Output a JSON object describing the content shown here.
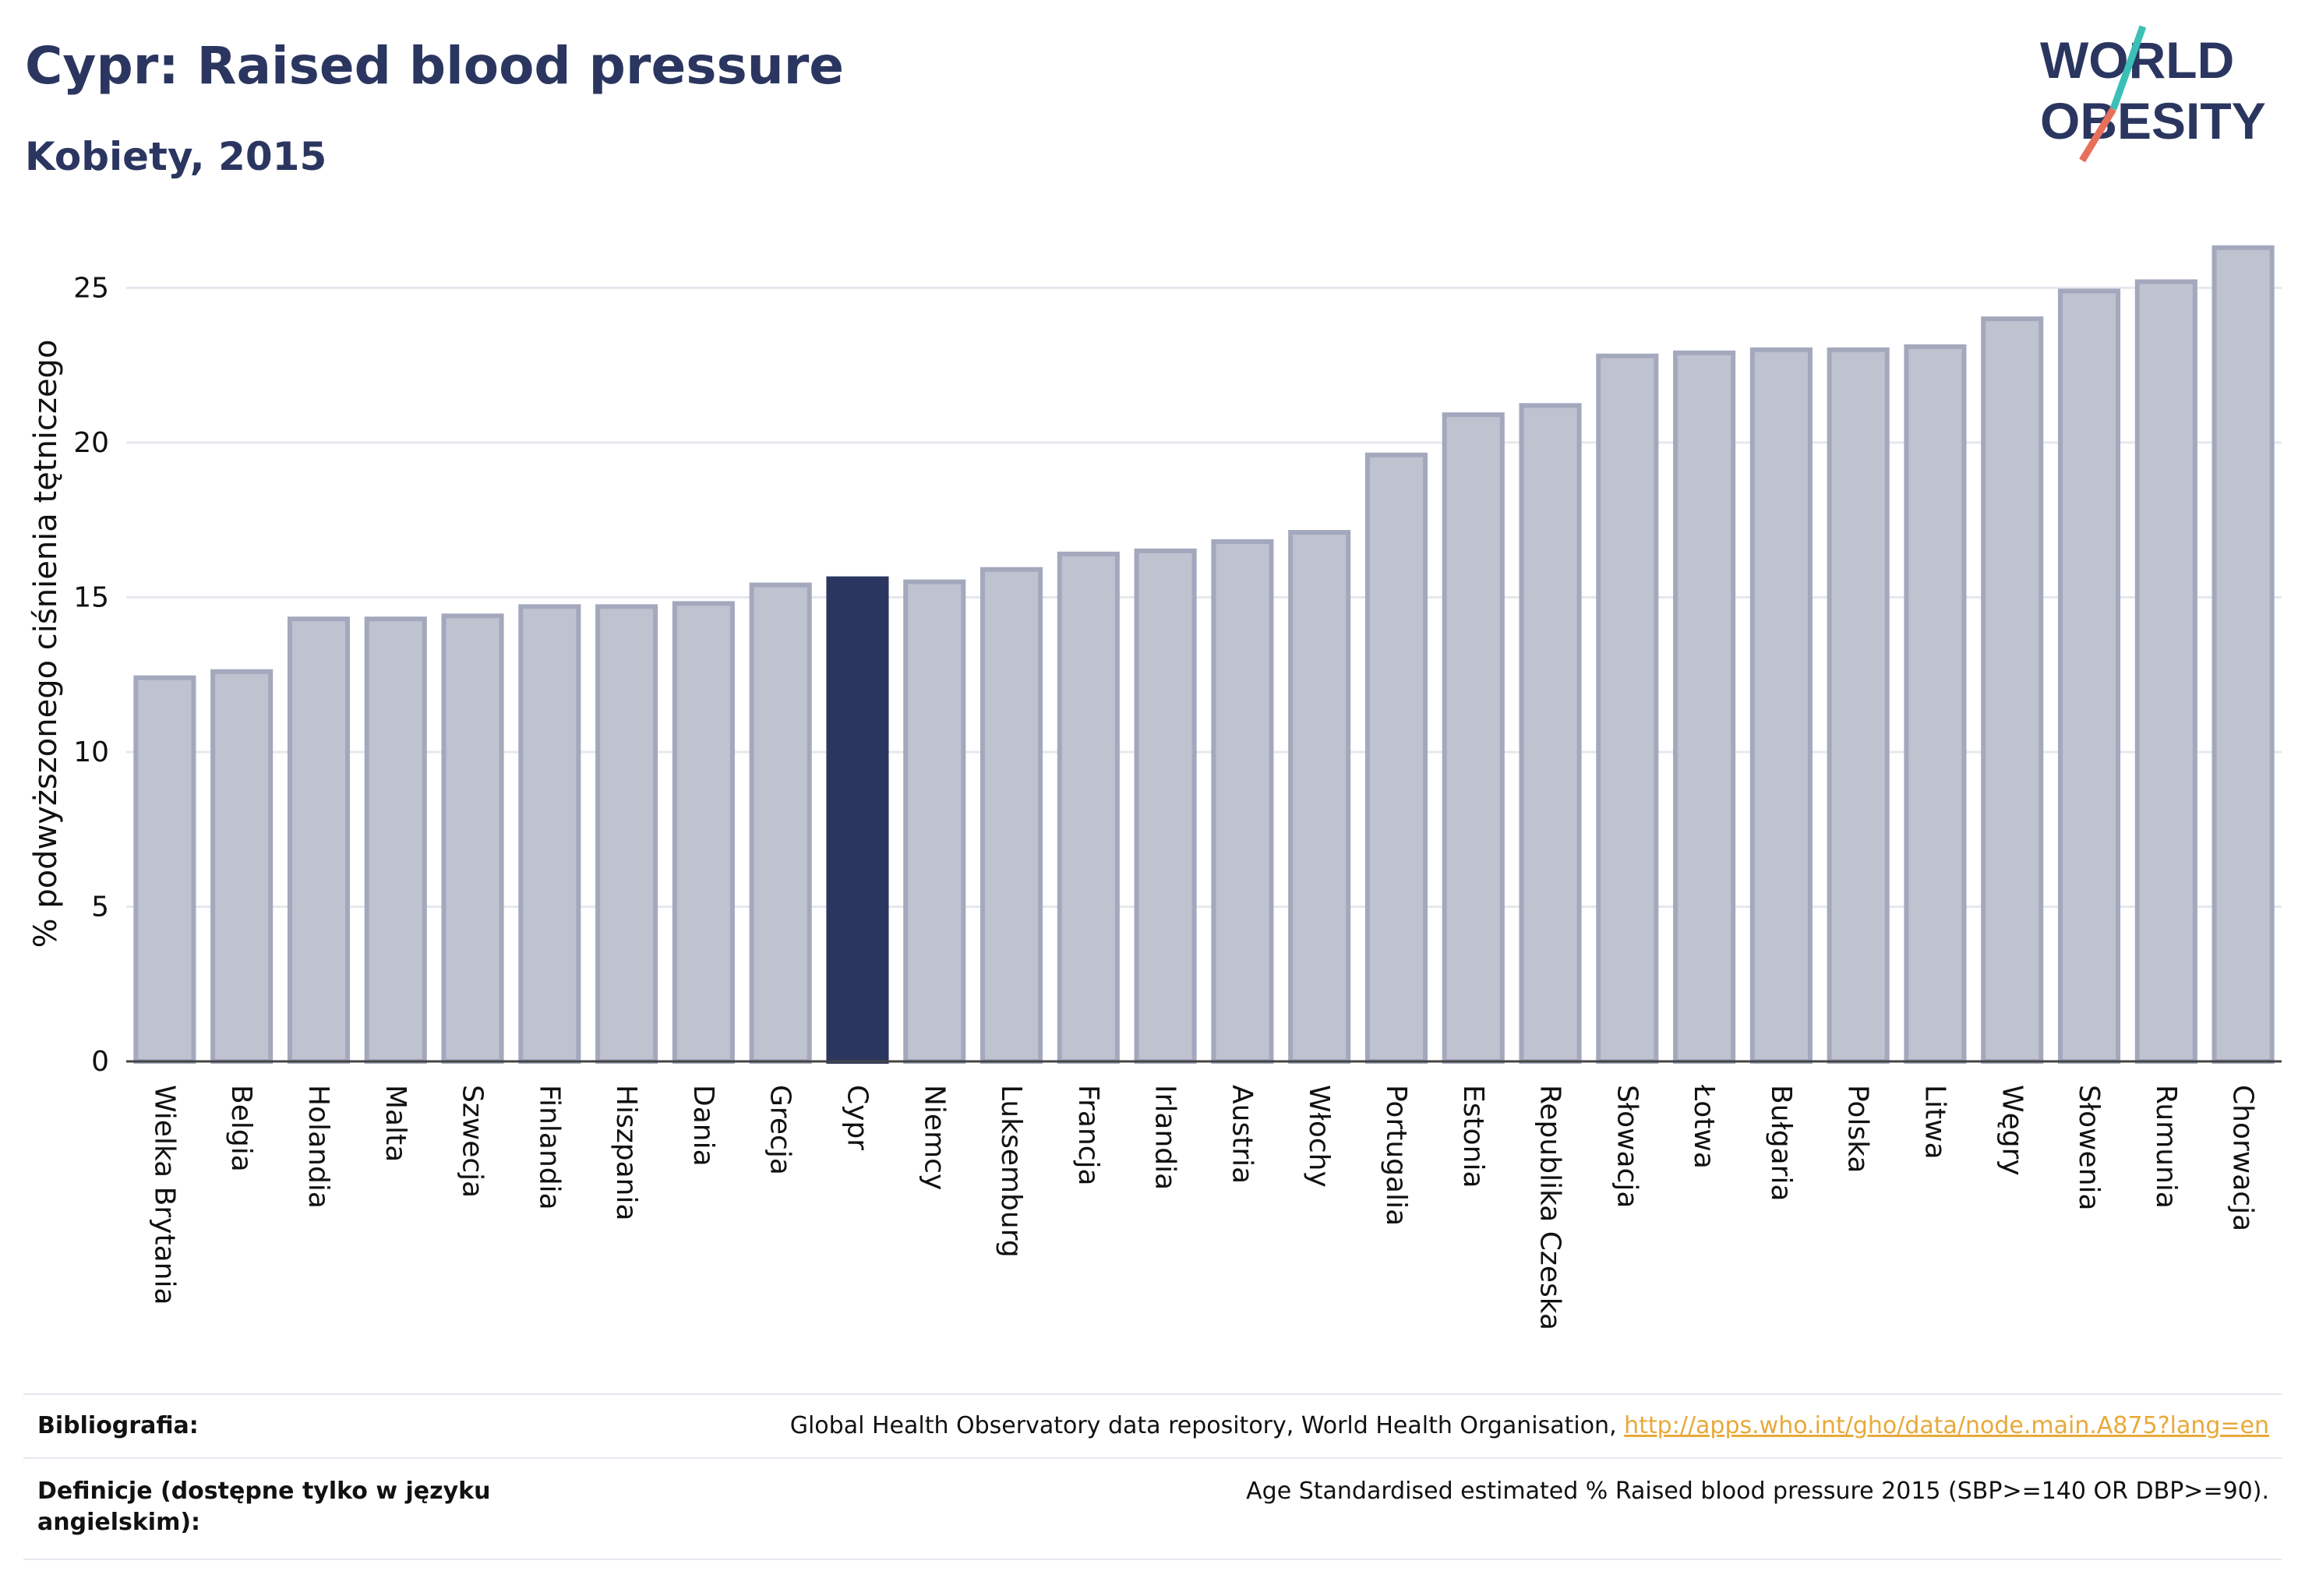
{
  "header": {
    "title": "Cypr: Raised blood pressure",
    "subtitle": "Kobiety, 2015"
  },
  "logo": {
    "line1": "WORLD",
    "line2": "OBESITY"
  },
  "chart_data": {
    "type": "bar",
    "ylabel": "% podwyższonego ciśnienia tętniczego",
    "ylim": [
      0,
      27
    ],
    "yticks": [
      0,
      5,
      10,
      15,
      20,
      25
    ],
    "grid": true,
    "highlight": "Cypr",
    "colors": {
      "bar": "#bfc2cf",
      "bar_edge": "#a3a8bd",
      "highlight": "#2b3660"
    },
    "categories": [
      "Wielka Brytania",
      "Belgia",
      "Holandia",
      "Malta",
      "Szwecja",
      "Finlandia",
      "Hiszpania",
      "Dania",
      "Grecja",
      "Cypr",
      "Niemcy",
      "Luksemburg",
      "Francja",
      "Irlandia",
      "Austria",
      "Włochy",
      "Portugalia",
      "Estonia",
      "Republika Czeska",
      "Słowacja",
      "Łotwa",
      "Bułgaria",
      "Polska",
      "Litwa",
      "Węgry",
      "Słowenia",
      "Rumunia",
      "Chorwacja"
    ],
    "values": [
      12.4,
      12.6,
      14.3,
      14.3,
      14.4,
      14.7,
      14.7,
      14.8,
      15.4,
      15.6,
      15.5,
      15.9,
      16.4,
      16.5,
      16.8,
      17.1,
      19.6,
      20.9,
      21.2,
      22.8,
      22.9,
      23.0,
      23.0,
      23.1,
      24.0,
      24.9,
      25.2,
      26.3
    ]
  },
  "footer": {
    "bibliography_label": "Bibliografia:",
    "bibliography_text": "Global Health Observatory data repository, World Health Organisation, ",
    "bibliography_link": "http://apps.who.int/gho/data/node.main.A875?lang=en",
    "definitions_label_line1": "Definicje (dostępne tylko w języku",
    "definitions_label_line2": "angielskim):",
    "definitions_text": "Age Standardised estimated % Raised blood pressure 2015 (SBP>=140 OR DBP>=90)."
  }
}
